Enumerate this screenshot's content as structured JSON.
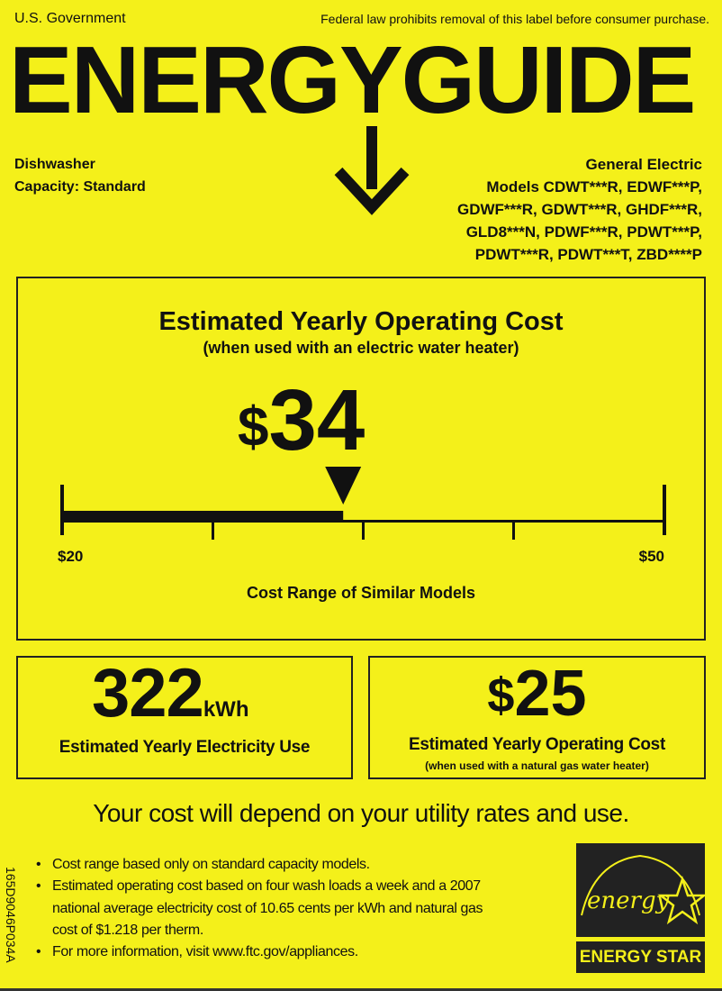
{
  "header": {
    "left": "U.S. Government",
    "right": "Federal law prohibits removal of this label before consumer purchase.",
    "title": "ENERGYGUIDE"
  },
  "product": {
    "type": "Dishwasher",
    "capacity": "Capacity: Standard"
  },
  "manufacturer": {
    "name": "General Electric",
    "models": [
      "Models CDWT***R, EDWF***P,",
      "GDWF***R, GDWT***R, GHDF***R,",
      "GLD8***N, PDWF***R, PDWT***P,",
      "PDWT***R, PDWT***T, ZBD****P"
    ]
  },
  "main_cost": {
    "title": "Estimated Yearly Operating Cost",
    "subtitle": "(when used with an electric water heater)",
    "currency": "$",
    "value": "34",
    "range_min": "$20",
    "range_max": "$50",
    "range_label": "Cost Range of Similar Models",
    "scale": {
      "min": 20,
      "max": 50,
      "value": 34
    }
  },
  "electricity": {
    "value": "322",
    "unit": "kWh",
    "label": "Estimated Yearly Electricity Use"
  },
  "gas_cost": {
    "currency": "$",
    "value": "25",
    "label": "Estimated Yearly Operating Cost",
    "sublabel": "(when used with a natural gas water heater)"
  },
  "disclaimer": "Your cost will depend on your utility rates and use.",
  "notes": [
    "Cost range based only on standard capacity models.",
    "Estimated operating cost based on four wash loads a week and a 2007",
    "national average electricity cost of 10.65 cents per kWh and natural gas",
    "cost of $1.218 per therm.",
    "For more information, visit www.ftc.gov/appliances."
  ],
  "side_code": "165D9046P034A",
  "energy_star": {
    "script": "energy",
    "label": "ENERGY STAR"
  },
  "colors": {
    "background": "#f4f01a",
    "ink": "#111111"
  }
}
